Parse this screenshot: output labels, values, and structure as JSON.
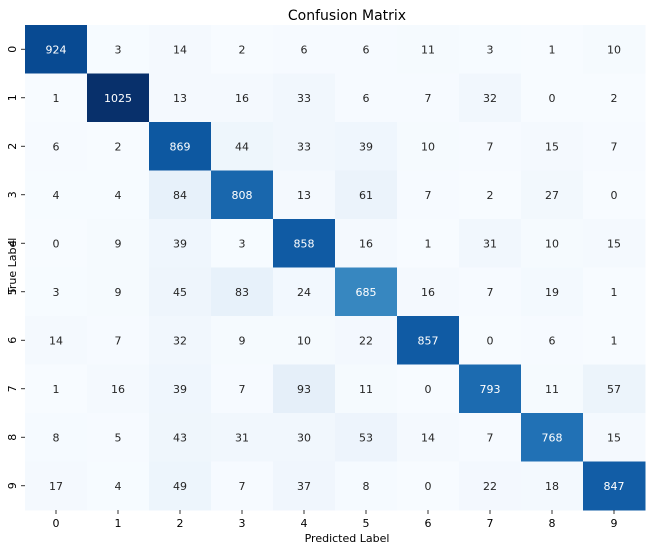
{
  "chart_data": {
    "type": "heatmap",
    "title": "Confusion Matrix",
    "xlabel": "Predicted Label",
    "ylabel": "True Label",
    "x_categories": [
      "0",
      "1",
      "2",
      "3",
      "4",
      "5",
      "6",
      "7",
      "8",
      "9"
    ],
    "y_categories": [
      "0",
      "1",
      "2",
      "3",
      "4",
      "5",
      "6",
      "7",
      "8",
      "9"
    ],
    "colormap": "Blues",
    "colorbar": false,
    "values": [
      [
        924,
        3,
        14,
        2,
        6,
        6,
        11,
        3,
        1,
        10
      ],
      [
        1,
        1025,
        13,
        16,
        33,
        6,
        7,
        32,
        0,
        2
      ],
      [
        6,
        2,
        869,
        44,
        33,
        39,
        10,
        7,
        15,
        7
      ],
      [
        4,
        4,
        84,
        808,
        13,
        61,
        7,
        2,
        27,
        0
      ],
      [
        0,
        9,
        39,
        3,
        858,
        16,
        1,
        31,
        10,
        15
      ],
      [
        3,
        9,
        45,
        83,
        24,
        685,
        16,
        7,
        19,
        1
      ],
      [
        14,
        7,
        32,
        9,
        10,
        22,
        857,
        0,
        6,
        1
      ],
      [
        1,
        16,
        39,
        7,
        93,
        11,
        0,
        793,
        11,
        57
      ],
      [
        8,
        5,
        43,
        31,
        30,
        53,
        14,
        7,
        768,
        15
      ],
      [
        17,
        4,
        49,
        7,
        37,
        8,
        0,
        22,
        18,
        847
      ]
    ]
  }
}
